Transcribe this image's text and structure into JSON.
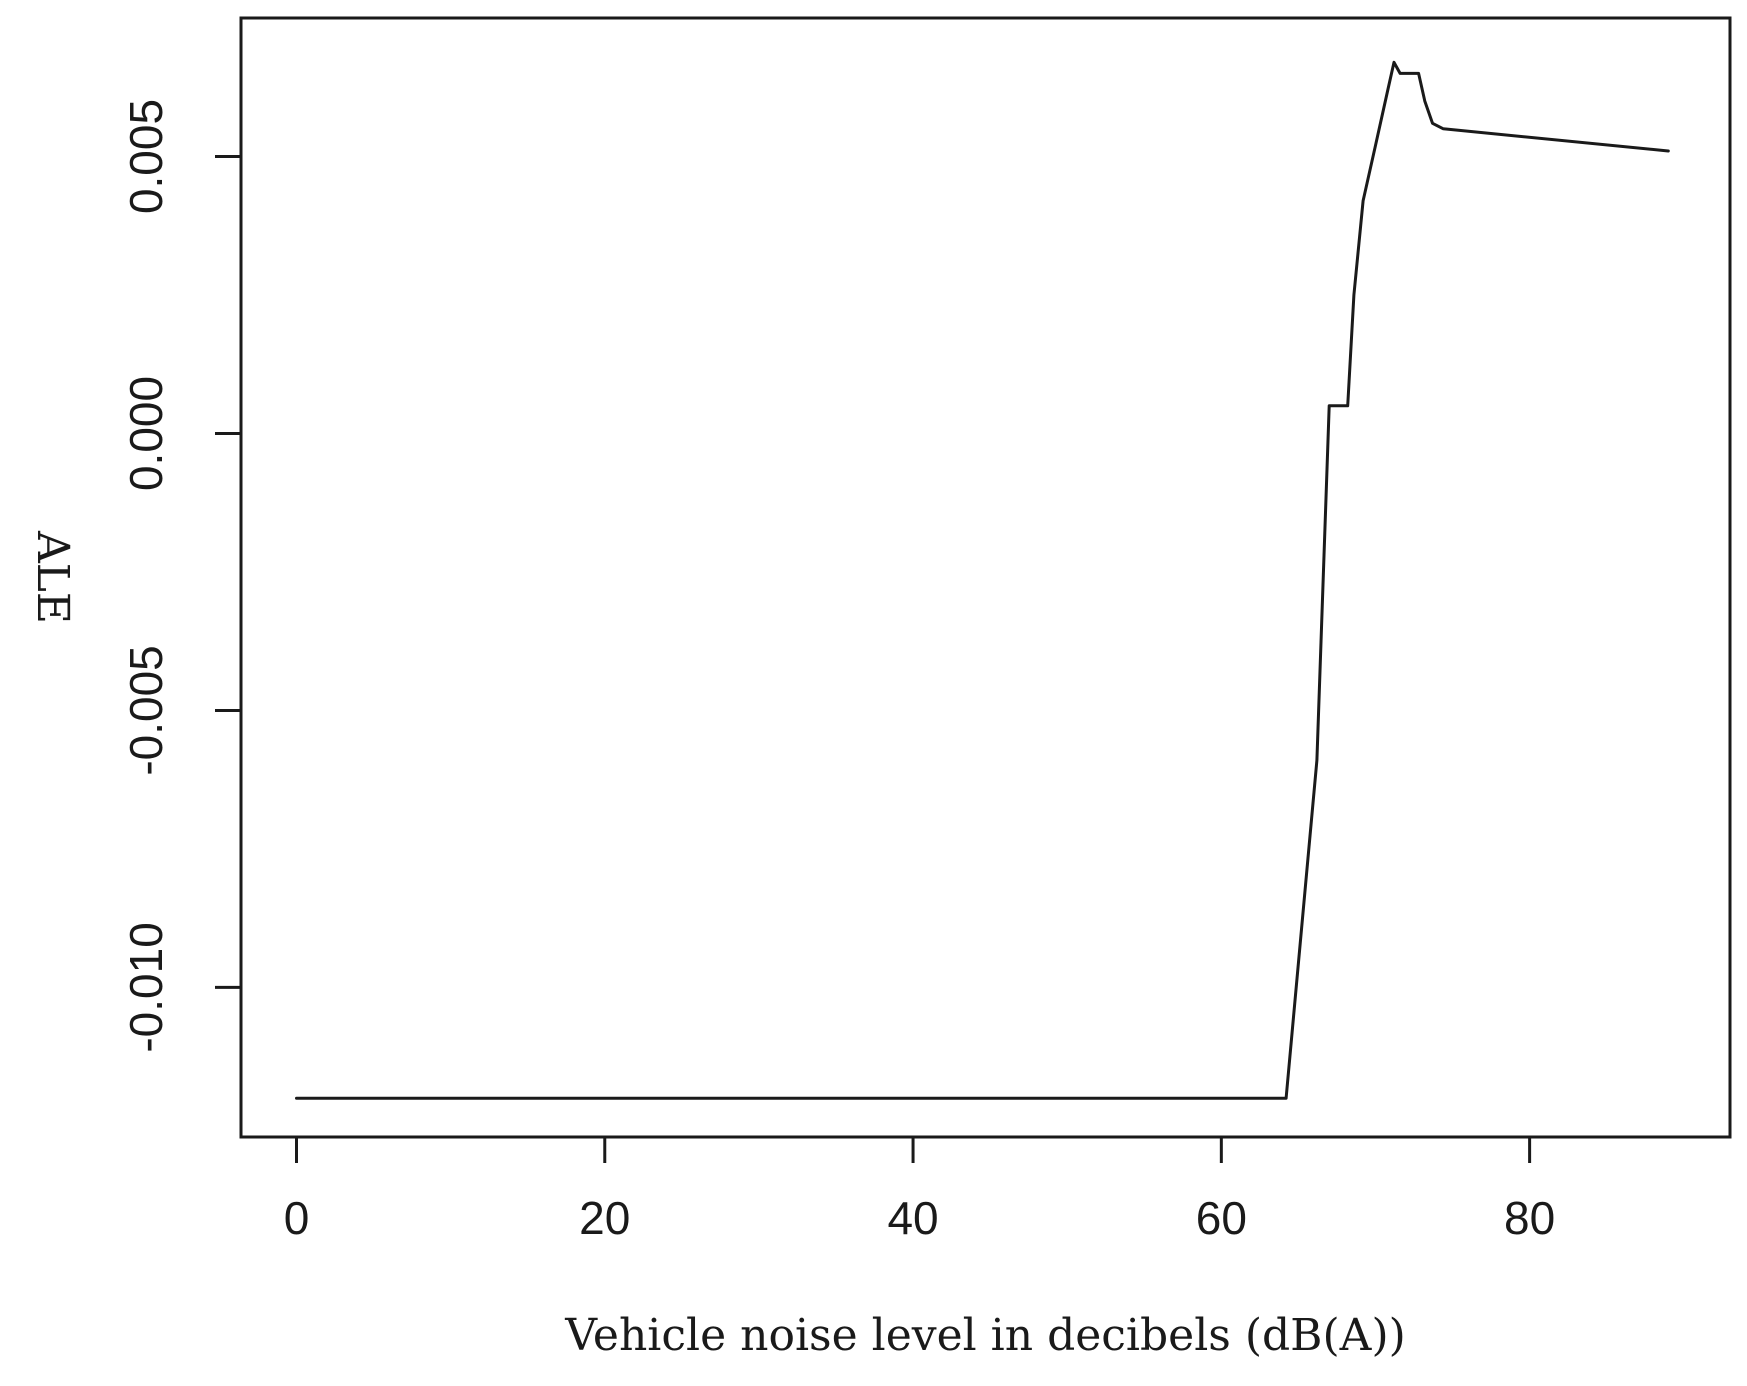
{
  "chart_data": {
    "type": "line",
    "title": "",
    "xlabel": "Vehicle noise level in decibels (dB(A))",
    "ylabel": "ALE",
    "xlim": [
      -3.6,
      93
    ],
    "ylim": [
      -0.0127,
      0.0075
    ],
    "xticks": [
      0,
      20,
      40,
      60,
      80
    ],
    "xtick_labels": [
      "0",
      "20",
      "40",
      "60",
      "80"
    ],
    "yticks": [
      -0.01,
      -0.005,
      0.0,
      0.005
    ],
    "ytick_labels": [
      "-0.010",
      "-0.005",
      "0.000",
      "0.005"
    ],
    "grid": false,
    "legend": "none",
    "line_color": "#1a1a1a",
    "series": [
      {
        "x": [
          0,
          64.2,
          66.2,
          67.0,
          67.2,
          68.2,
          68.6,
          69.2,
          70.0,
          70.8,
          71.2,
          71.6,
          72.1,
          72.8,
          73.2,
          73.7,
          74.4,
          89.0
        ],
        "y": [
          -0.012,
          -0.012,
          -0.0059,
          0.0005,
          0.0005,
          0.0005,
          0.0025,
          0.0042,
          0.0052,
          0.0062,
          0.0067,
          0.0065,
          0.0065,
          0.0065,
          0.006,
          0.0056,
          0.0055,
          0.0051
        ]
      }
    ]
  }
}
